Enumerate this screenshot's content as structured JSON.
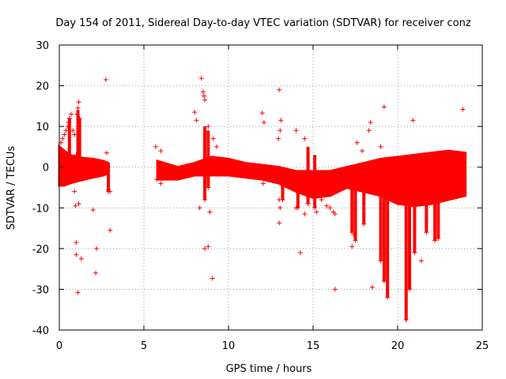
{
  "chart_data": {
    "type": "scatter",
    "title": "Day 154 of 2011, Sidereal Day-to-day VTEC variation (SDTVAR) for receiver conz",
    "xlabel": "GPS time / hours",
    "ylabel": "SDTVAR / TECUs",
    "xlim": [
      0,
      25
    ],
    "ylim": [
      -40,
      30
    ],
    "xticks": [
      0,
      5,
      10,
      15,
      20,
      25
    ],
    "yticks": [
      30,
      20,
      10,
      0,
      -10,
      -20,
      -30,
      -40
    ],
    "grid": true,
    "marker": "+",
    "series_color": "#ff0000",
    "dense_band": {
      "description": "continuous stream of observations, upper/lower envelope in TECU",
      "segments": [
        {
          "x": [
            0.0,
            0.3,
            0.6,
            1.0,
            1.5,
            2.0,
            2.6,
            2.9
          ],
          "upper": [
            5,
            4,
            3,
            2.5,
            2.2,
            2,
            1.5,
            1
          ],
          "lower": [
            -4.5,
            -4.5,
            -4,
            -3.5,
            -3,
            -2.5,
            -2,
            -1.5
          ]
        },
        {
          "x": [
            5.8,
            7,
            8,
            9,
            10,
            11,
            12,
            13,
            14,
            15,
            16,
            17,
            18,
            19,
            20,
            21,
            22,
            23,
            24
          ],
          "upper": [
            1.5,
            0,
            1,
            2.5,
            2,
            1,
            0.5,
            0,
            -1,
            -1,
            -1,
            0,
            1,
            2,
            2.5,
            3,
            3.5,
            4,
            3.5
          ],
          "lower": [
            -3,
            -3,
            -2,
            -2,
            -2,
            -2.5,
            -3,
            -4,
            -6,
            -7.5,
            -7,
            -5,
            -6,
            -7,
            -9,
            -9.5,
            -9,
            -8,
            -7
          ]
        }
      ]
    },
    "scatter_points": [
      [
        2.75,
        21.5
      ],
      [
        8.0,
        13.5
      ],
      [
        8.1,
        11.5
      ],
      [
        8.4,
        21.8
      ],
      [
        8.5,
        18.5
      ],
      [
        8.55,
        17.5
      ],
      [
        8.6,
        16.5
      ],
      [
        8.8,
        10
      ],
      [
        9.1,
        7
      ],
      [
        9.3,
        5
      ],
      [
        9.05,
        -27.3
      ],
      [
        8.3,
        -10
      ],
      [
        8.8,
        -19.5
      ],
      [
        8.6,
        -20
      ],
      [
        8.9,
        -11
      ],
      [
        12.0,
        13.3
      ],
      [
        12.1,
        11
      ],
      [
        12.05,
        -4
      ],
      [
        13.0,
        19
      ],
      [
        13.1,
        11.5
      ],
      [
        13.05,
        9
      ],
      [
        12.95,
        7
      ],
      [
        13.0,
        -8
      ],
      [
        13.05,
        -10
      ],
      [
        13.0,
        -13.7
      ],
      [
        14.0,
        9
      ],
      [
        14.5,
        7
      ],
      [
        14.25,
        -21
      ],
      [
        14.0,
        -10
      ],
      [
        14.5,
        -11.5
      ],
      [
        16.3,
        -30
      ],
      [
        16.2,
        -11
      ],
      [
        16.3,
        -11.5
      ],
      [
        17.2,
        -5
      ],
      [
        17.3,
        -19.5
      ],
      [
        17.4,
        -16.5
      ],
      [
        17.6,
        6
      ],
      [
        17.9,
        4
      ],
      [
        18.3,
        9
      ],
      [
        18.4,
        11
      ],
      [
        18.5,
        -29.5
      ],
      [
        19.0,
        5
      ],
      [
        19.2,
        14.8
      ],
      [
        20.9,
        11.5
      ],
      [
        21.4,
        -23
      ],
      [
        23.85,
        14.2
      ],
      [
        22.2,
        -8
      ],
      [
        0.1,
        6
      ],
      [
        0.2,
        7
      ],
      [
        0.3,
        8
      ],
      [
        0.4,
        9
      ],
      [
        0.5,
        10
      ],
      [
        0.55,
        11
      ],
      [
        0.6,
        12
      ],
      [
        0.7,
        13
      ],
      [
        0.8,
        9
      ],
      [
        0.9,
        8
      ],
      [
        1.05,
        13
      ],
      [
        1.1,
        14.5
      ],
      [
        1.15,
        16
      ],
      [
        1.2,
        12
      ],
      [
        1.0,
        3
      ],
      [
        0.9,
        -6
      ],
      [
        0.95,
        -9.5
      ],
      [
        1.0,
        -18.5
      ],
      [
        1.0,
        -21.5
      ],
      [
        1.1,
        -30.8
      ],
      [
        1.3,
        -22.5
      ],
      [
        1.15,
        -9
      ],
      [
        2.0,
        -10.5
      ],
      [
        2.2,
        -20
      ],
      [
        2.15,
        -26
      ],
      [
        3.0,
        -15.5
      ],
      [
        2.8,
        3.5
      ],
      [
        2.9,
        -5.5
      ],
      [
        3.0,
        -6
      ],
      [
        5.7,
        5
      ],
      [
        6.0,
        4
      ],
      [
        5.75,
        -3
      ],
      [
        6.0,
        -4
      ],
      [
        14.7,
        -6.5
      ],
      [
        15.2,
        -11
      ],
      [
        15.5,
        -8
      ],
      [
        15.8,
        -9.5
      ],
      [
        16.0,
        -10
      ]
    ],
    "dense_features": [
      {
        "x": 0.6,
        "from": 0,
        "to": 12
      },
      {
        "x": 1.1,
        "from": 1,
        "to": 14
      },
      {
        "x": 1.2,
        "from": 2,
        "to": 12
      },
      {
        "x": 2.9,
        "from": -6,
        "to": 1
      },
      {
        "x": 8.6,
        "from": -8,
        "to": 10
      },
      {
        "x": 8.8,
        "from": -5,
        "to": 9
      },
      {
        "x": 13.2,
        "from": -8,
        "to": 0
      },
      {
        "x": 14.1,
        "from": -10,
        "to": -2
      },
      {
        "x": 14.7,
        "from": -9,
        "to": 5
      },
      {
        "x": 15.1,
        "from": -10,
        "to": 3
      },
      {
        "x": 17.3,
        "from": -16,
        "to": -5
      },
      {
        "x": 17.5,
        "from": -18,
        "to": -5
      },
      {
        "x": 18.0,
        "from": -14,
        "to": -6
      },
      {
        "x": 19.0,
        "from": -23,
        "to": -5
      },
      {
        "x": 19.2,
        "from": -28,
        "to": -7
      },
      {
        "x": 19.4,
        "from": -32,
        "to": -7
      },
      {
        "x": 20.5,
        "from": -37.5,
        "to": -8
      },
      {
        "x": 20.7,
        "from": -30,
        "to": -8
      },
      {
        "x": 21.0,
        "from": -21,
        "to": -8
      },
      {
        "x": 21.7,
        "from": -16,
        "to": -8
      },
      {
        "x": 22.2,
        "from": -18,
        "to": -8
      },
      {
        "x": 22.4,
        "from": -17.5,
        "to": -8
      }
    ]
  }
}
